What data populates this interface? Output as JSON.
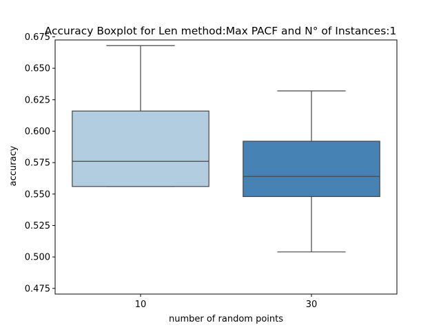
{
  "chart_data": {
    "type": "boxplot",
    "title": "Accuracy Boxplot for Len method:Max PACF and N° of Instances:1",
    "xlabel": "number of random points",
    "ylabel": "accuracy",
    "categories": [
      "10",
      "30"
    ],
    "ylim": [
      0.4705,
      0.6725
    ],
    "yticks": [
      "0.475",
      "0.500",
      "0.525",
      "0.550",
      "0.575",
      "0.600",
      "0.625",
      "0.650",
      "0.675"
    ],
    "grid": false,
    "boxes": [
      {
        "category": "10",
        "whisker_low": 0.556,
        "q1": 0.556,
        "median": 0.576,
        "q3": 0.616,
        "whisker_high": 0.668,
        "color": "#b3cde0"
      },
      {
        "category": "30",
        "whisker_low": 0.504,
        "q1": 0.548,
        "median": 0.564,
        "q3": 0.592,
        "whisker_high": 0.632,
        "color": "#4682b4"
      }
    ],
    "line_color": "#444444"
  }
}
